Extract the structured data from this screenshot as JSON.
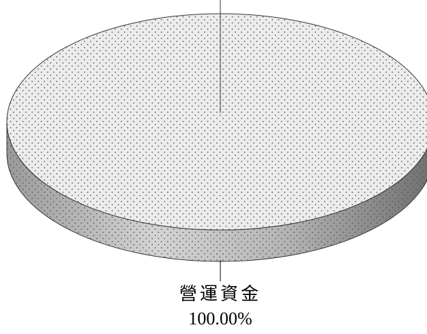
{
  "chart_data": {
    "type": "pie",
    "style": "3d",
    "categories": [
      "營運資金"
    ],
    "values": [
      100.0
    ],
    "labels": [
      {
        "category": "營運資金",
        "percent": "100.00%"
      }
    ],
    "title": "",
    "legend": "none",
    "colors": {
      "top": "#ececec",
      "side_light": "#c9c9c9",
      "side_dark": "#7a7a7a",
      "pattern_dot": "#555555",
      "outline": "#333333"
    }
  }
}
